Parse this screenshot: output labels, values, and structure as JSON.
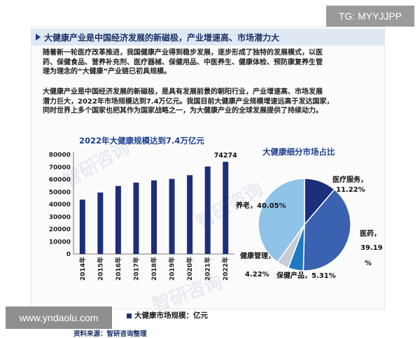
{
  "overlays": {
    "top_badge": "TG: MYYJJPP",
    "bottom_badge": "www.yndaolu.com"
  },
  "article": {
    "header": "大健康产业是中国经济发展的新磁极，产业增速高、市场潜力大",
    "paragraph1_lines": [
      "随着新一轮医疗改革推进，我国健康产业得到稳步发展，逐步形成了独特的发展模式，以医",
      "药、保健食品、营养补充剂、医疗器械、保健用品、中医养生、健康体检、预防康复养生管",
      "理为理念的“大健康”产业链已初具规模。"
    ],
    "paragraph2_lines": [
      "大健康产业是中国经济发展的新磁极，是具有发展前景的朝阳行业，产业增速高、市场发展",
      "潜力巨大，2022年市场规模达到7.4万亿元。我国目前大健康产业规模增速远高于发达国家，",
      "同时世界上多个国家也把其作为国家战略之一，为大健康产业的全球发展提供了持续动力。"
    ],
    "source": "资料来源：智研咨询整理",
    "watermark": "智研咨询"
  },
  "colors": {
    "bar": "#1d2f7a",
    "pie": [
      "#1d2f7a",
      "#3a62b0",
      "#1f78c4",
      "#c5ccd6",
      "#8fc3e8"
    ]
  },
  "chart_data": [
    {
      "type": "bar",
      "title": "2022年大健康规模达到7.4万亿元",
      "categories": [
        "2014年",
        "2015年",
        "2016年",
        "2017年",
        "2018年",
        "2019年",
        "2020年",
        "2021年",
        "2022年"
      ],
      "series": [
        {
          "name": "大健康市场规模：亿元",
          "values": [
            43800,
            49500,
            54800,
            57500,
            59300,
            60500,
            63500,
            70500,
            74274
          ]
        }
      ],
      "data_labels": [
        null,
        null,
        null,
        null,
        null,
        null,
        null,
        null,
        "74274"
      ],
      "yticks": [
        0,
        10000,
        20000,
        30000,
        40000,
        50000,
        60000,
        70000,
        80000
      ],
      "ylim": [
        0,
        80000
      ],
      "legend_position": "bottom"
    },
    {
      "type": "pie",
      "title": "大健康细分市场占比",
      "labels": [
        "医疗服务",
        "医药",
        "保健产品",
        "健康管理",
        "养老"
      ],
      "values": [
        11.22,
        39.19,
        5.31,
        4.22,
        40.05
      ],
      "value_labels": [
        "11.22%",
        "39.19%",
        "5.31%",
        "4.22%",
        "40.05%"
      ]
    }
  ]
}
